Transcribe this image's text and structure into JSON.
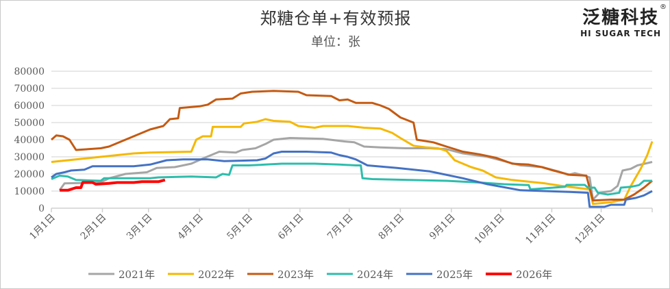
{
  "chart_data": {
    "type": "line",
    "title": "郑糖仓单+有效预报",
    "subtitle": "单位：张",
    "xlabel": "",
    "ylabel": "",
    "ylim": [
      0,
      80000
    ],
    "yticks": [
      "0",
      "10000",
      "20000",
      "30000",
      "40000",
      "50000",
      "60000",
      "70000",
      "80000"
    ],
    "x_unit": "day of year",
    "xlim": [
      0,
      365
    ],
    "xticks": [
      {
        "label": "1月1日",
        "day": 0
      },
      {
        "label": "2月1日",
        "day": 31
      },
      {
        "label": "3月1日",
        "day": 59
      },
      {
        "label": "4月1日",
        "day": 90
      },
      {
        "label": "5月1日",
        "day": 120
      },
      {
        "label": "6月1日",
        "day": 151
      },
      {
        "label": "7月1日",
        "day": 181
      },
      {
        "label": "8月1日",
        "day": 212
      },
      {
        "label": "9月1日",
        "day": 243
      },
      {
        "label": "10月1日",
        "day": 273
      },
      {
        "label": "11月1日",
        "day": 304
      },
      {
        "label": "12月1日",
        "day": 334
      }
    ],
    "grid": true,
    "legend_position": "bottom",
    "series": [
      {
        "name": "2021年",
        "color": "#a5a5a5",
        "points": [
          [
            5,
            10500
          ],
          [
            8,
            14500
          ],
          [
            30,
            15000
          ],
          [
            35,
            17500
          ],
          [
            45,
            20000
          ],
          [
            58,
            21000
          ],
          [
            64,
            23500
          ],
          [
            75,
            24000
          ],
          [
            85,
            26000
          ],
          [
            92,
            29000
          ],
          [
            97,
            31000
          ],
          [
            102,
            33000
          ],
          [
            112,
            32500
          ],
          [
            116,
            34000
          ],
          [
            124,
            35000
          ],
          [
            130,
            37500
          ],
          [
            135,
            40000
          ],
          [
            145,
            41000
          ],
          [
            165,
            40500
          ],
          [
            178,
            39000
          ],
          [
            184,
            38500
          ],
          [
            190,
            36000
          ],
          [
            200,
            35500
          ],
          [
            215,
            35000
          ],
          [
            230,
            35000
          ],
          [
            240,
            34500
          ],
          [
            250,
            32000
          ],
          [
            265,
            30000
          ],
          [
            275,
            27500
          ],
          [
            285,
            25000
          ],
          [
            298,
            24000
          ],
          [
            308,
            21500
          ],
          [
            314,
            19500
          ],
          [
            318,
            20500
          ],
          [
            324,
            19000
          ],
          [
            327,
            18000
          ],
          [
            329,
            5000
          ],
          [
            333,
            9000
          ],
          [
            340,
            10000
          ],
          [
            344,
            13000
          ],
          [
            347,
            22000
          ],
          [
            352,
            23000
          ],
          [
            356,
            25000
          ],
          [
            365,
            27000
          ]
        ]
      },
      {
        "name": "2022年",
        "color": "#f5b800",
        "points": [
          [
            0,
            27000
          ],
          [
            10,
            28000
          ],
          [
            20,
            29000
          ],
          [
            30,
            30000
          ],
          [
            40,
            31000
          ],
          [
            50,
            32000
          ],
          [
            60,
            32500
          ],
          [
            85,
            33000
          ],
          [
            88,
            40000
          ],
          [
            92,
            42000
          ],
          [
            97,
            42000
          ],
          [
            98,
            47500
          ],
          [
            115,
            47500
          ],
          [
            117,
            49500
          ],
          [
            125,
            50500
          ],
          [
            130,
            52000
          ],
          [
            135,
            51000
          ],
          [
            145,
            50500
          ],
          [
            150,
            48000
          ],
          [
            160,
            47000
          ],
          [
            165,
            48000
          ],
          [
            180,
            48000
          ],
          [
            190,
            47000
          ],
          [
            200,
            46500
          ],
          [
            207,
            44000
          ],
          [
            212,
            41000
          ],
          [
            220,
            36500
          ],
          [
            228,
            35500
          ],
          [
            235,
            35000
          ],
          [
            240,
            33500
          ],
          [
            245,
            28000
          ],
          [
            255,
            24000
          ],
          [
            262,
            22000
          ],
          [
            270,
            18000
          ],
          [
            280,
            16500
          ],
          [
            300,
            14500
          ],
          [
            310,
            13000
          ],
          [
            327,
            11000
          ],
          [
            329,
            2500
          ],
          [
            340,
            3500
          ],
          [
            348,
            5000
          ],
          [
            352,
            13000
          ],
          [
            358,
            23000
          ],
          [
            362,
            31000
          ],
          [
            365,
            39000
          ]
        ]
      },
      {
        "name": "2023年",
        "color": "#c55a11",
        "points": [
          [
            0,
            40000
          ],
          [
            3,
            42500
          ],
          [
            7,
            42000
          ],
          [
            11,
            40000
          ],
          [
            15,
            34000
          ],
          [
            30,
            35000
          ],
          [
            35,
            36000
          ],
          [
            45,
            40000
          ],
          [
            55,
            44000
          ],
          [
            60,
            46000
          ],
          [
            68,
            48000
          ],
          [
            72,
            52000
          ],
          [
            77,
            52500
          ],
          [
            78,
            58500
          ],
          [
            90,
            59500
          ],
          [
            95,
            60500
          ],
          [
            100,
            63500
          ],
          [
            110,
            64000
          ],
          [
            115,
            67000
          ],
          [
            122,
            68000
          ],
          [
            135,
            68500
          ],
          [
            150,
            68000
          ],
          [
            155,
            66000
          ],
          [
            170,
            65500
          ],
          [
            175,
            63000
          ],
          [
            180,
            63500
          ],
          [
            185,
            61500
          ],
          [
            195,
            61500
          ],
          [
            200,
            60000
          ],
          [
            205,
            58000
          ],
          [
            212,
            53000
          ],
          [
            220,
            50000
          ],
          [
            222,
            40000
          ],
          [
            232,
            38500
          ],
          [
            240,
            36000
          ],
          [
            250,
            33000
          ],
          [
            260,
            31500
          ],
          [
            270,
            29500
          ],
          [
            280,
            26000
          ],
          [
            290,
            25500
          ],
          [
            298,
            24000
          ],
          [
            305,
            22000
          ],
          [
            315,
            19500
          ],
          [
            325,
            19000
          ],
          [
            329,
            4500
          ],
          [
            340,
            5000
          ],
          [
            348,
            5000
          ],
          [
            354,
            8000
          ],
          [
            360,
            12000
          ],
          [
            365,
            16000
          ]
        ]
      },
      {
        "name": "2024年",
        "color": "#2dbdac",
        "points": [
          [
            0,
            17000
          ],
          [
            5,
            19000
          ],
          [
            10,
            18500
          ],
          [
            15,
            16500
          ],
          [
            30,
            16000
          ],
          [
            32,
            17500
          ],
          [
            60,
            17500
          ],
          [
            65,
            18000
          ],
          [
            85,
            18500
          ],
          [
            100,
            18000
          ],
          [
            104,
            20000
          ],
          [
            108,
            19500
          ],
          [
            110,
            25000
          ],
          [
            120,
            25000
          ],
          [
            130,
            25500
          ],
          [
            140,
            26000
          ],
          [
            160,
            26000
          ],
          [
            175,
            25500
          ],
          [
            185,
            25000
          ],
          [
            188,
            25000
          ],
          [
            189,
            17500
          ],
          [
            195,
            17000
          ],
          [
            240,
            16000
          ],
          [
            260,
            15000
          ],
          [
            275,
            14000
          ],
          [
            290,
            13500
          ],
          [
            291,
            11000
          ],
          [
            305,
            12000
          ],
          [
            312,
            12500
          ],
          [
            313,
            13600
          ],
          [
            324,
            13600
          ],
          [
            326,
            12000
          ],
          [
            330,
            12000
          ],
          [
            332,
            9000
          ],
          [
            338,
            8000
          ],
          [
            345,
            9000
          ],
          [
            346,
            12000
          ],
          [
            352,
            12500
          ],
          [
            357,
            13500
          ],
          [
            360,
            16000
          ],
          [
            365,
            16000
          ]
        ]
      },
      {
        "name": "2025年",
        "color": "#4472c4",
        "points": [
          [
            0,
            18000
          ],
          [
            3,
            20000
          ],
          [
            8,
            21000
          ],
          [
            12,
            22000
          ],
          [
            20,
            22500
          ],
          [
            25,
            24500
          ],
          [
            50,
            24500
          ],
          [
            60,
            25500
          ],
          [
            70,
            28000
          ],
          [
            80,
            28500
          ],
          [
            95,
            28500
          ],
          [
            105,
            27500
          ],
          [
            125,
            28000
          ],
          [
            130,
            29000
          ],
          [
            135,
            32000
          ],
          [
            140,
            33000
          ],
          [
            155,
            33000
          ],
          [
            170,
            32500
          ],
          [
            175,
            31000
          ],
          [
            180,
            30000
          ],
          [
            185,
            28500
          ],
          [
            188,
            27000
          ],
          [
            192,
            25000
          ],
          [
            210,
            23500
          ],
          [
            230,
            21500
          ],
          [
            250,
            17500
          ],
          [
            265,
            14000
          ],
          [
            285,
            10500
          ],
          [
            300,
            10000
          ],
          [
            315,
            9500
          ],
          [
            326,
            9000
          ],
          [
            327,
            800
          ],
          [
            336,
            800
          ],
          [
            340,
            2000
          ],
          [
            348,
            2000
          ],
          [
            349,
            5000
          ],
          [
            355,
            6000
          ],
          [
            360,
            7500
          ],
          [
            365,
            10000
          ]
        ]
      },
      {
        "name": "2026年",
        "color": "#ff0000",
        "points": [
          [
            5,
            10500
          ],
          [
            10,
            10500
          ],
          [
            15,
            12000
          ],
          [
            18,
            12000
          ],
          [
            19,
            15000
          ],
          [
            25,
            15000
          ],
          [
            27,
            14000
          ],
          [
            35,
            14500
          ],
          [
            40,
            15000
          ],
          [
            50,
            15000
          ],
          [
            55,
            15500
          ],
          [
            65,
            15500
          ],
          [
            69,
            16500
          ]
        ]
      }
    ]
  },
  "logo": {
    "cn": "泛糖科技",
    "en": "HI SUGAR TECH",
    "reg": "®"
  }
}
